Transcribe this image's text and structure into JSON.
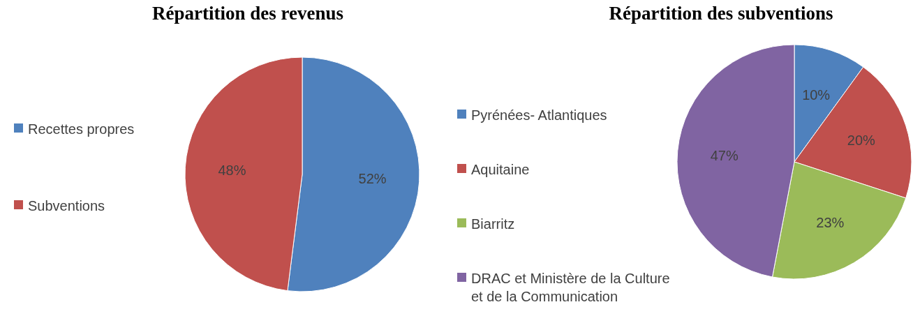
{
  "chart_data": [
    {
      "type": "pie",
      "title": "Répartition des revenus",
      "categories": [
        "Recettes propres",
        "Subventions"
      ],
      "values": [
        52,
        48
      ],
      "colors": [
        "#4f81bd",
        "#c0504d"
      ],
      "value_labels": [
        "52%",
        "48%"
      ],
      "legend": "left"
    },
    {
      "type": "pie",
      "title": "Répartition des subventions",
      "categories": [
        "Pyrénées- Atlantiques",
        "Aquitaine",
        "Biarritz",
        "DRAC et Ministère de la Culture et de la Communication"
      ],
      "values": [
        10,
        20,
        23,
        47
      ],
      "colors": [
        "#4f81bd",
        "#c0504d",
        "#9bbb59",
        "#8064a2"
      ],
      "value_labels": [
        "10%",
        "20%",
        "23%",
        "47%"
      ],
      "legend": "left"
    }
  ]
}
